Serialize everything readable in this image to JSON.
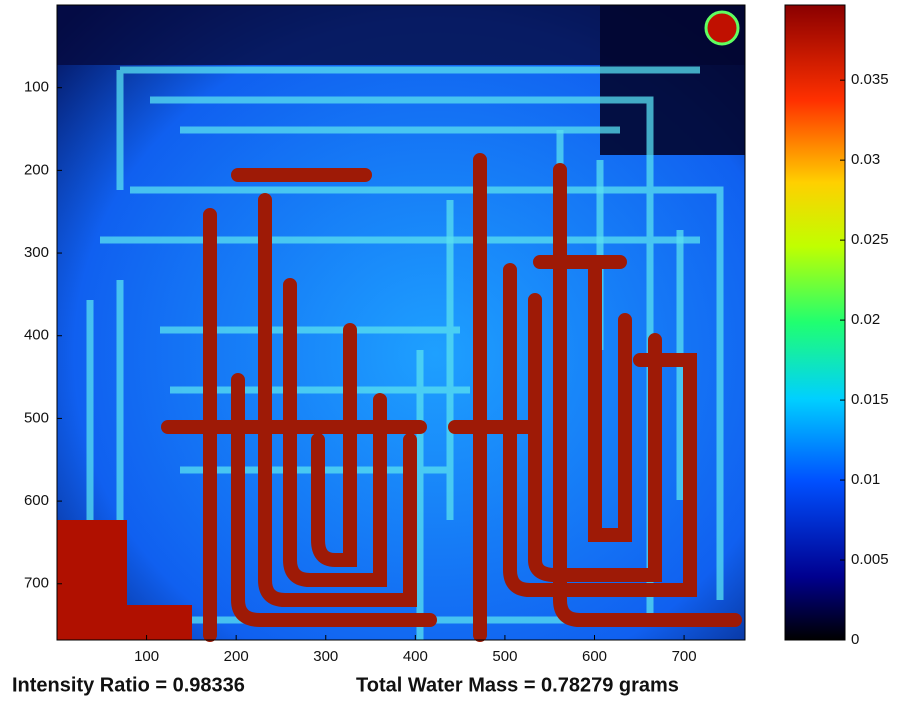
{
  "chart_data": {
    "type": "heatmap",
    "xlim": [
      0,
      768
    ],
    "ylim": [
      0,
      768
    ],
    "xticks": [
      100,
      200,
      300,
      400,
      500,
      600,
      700
    ],
    "yticks": [
      100,
      200,
      300,
      400,
      500,
      600,
      700
    ],
    "colorbar": {
      "clim": [
        0,
        0.0397
      ],
      "ticks": [
        0,
        0.005,
        0.01,
        0.015,
        0.02,
        0.025,
        0.03,
        0.035
      ]
    },
    "annotations": [
      "Intensity Ratio = 0.98336",
      "Total Water Mass = 0.78279 grams"
    ]
  }
}
